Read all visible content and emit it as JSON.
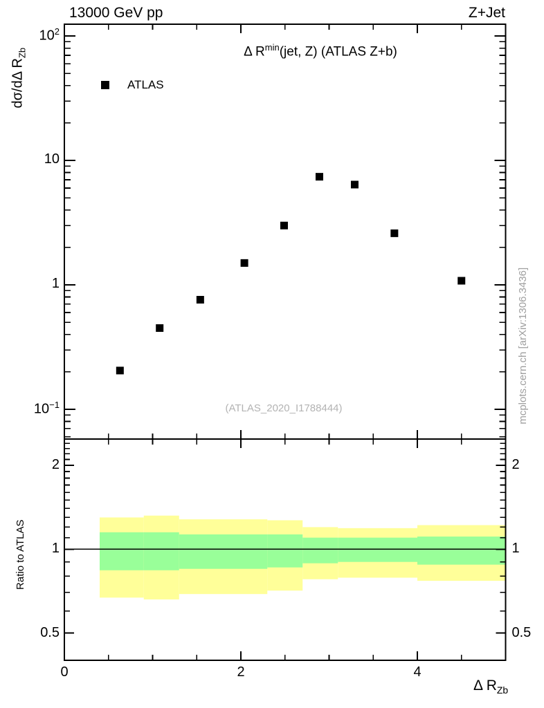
{
  "header": {
    "left": "13000 GeV pp",
    "right": "Z+Jet"
  },
  "main_panel": {
    "title": {
      "pre": "Δ R",
      "sup": "min",
      "post": "(jet, Z) (ATLAS Z+b)"
    },
    "ylabel": {
      "pre": "dσ/dΔ R",
      "sub": "Zb"
    },
    "legend": [
      {
        "marker": "filled-square",
        "label": "ATLAS"
      }
    ],
    "watermark": "(ATLAS_2020_I1788444)"
  },
  "ratio_panel": {
    "ylabel": "Ratio to ATLAS"
  },
  "xlabel": {
    "pre": "Δ R",
    "sub": "Zb"
  },
  "side_text": "mcplots.cern.ch [arXiv:1306.3436]",
  "colors": {
    "marker": "#000000",
    "band_outer_yellow": "#ffff99",
    "band_inner_green": "#99ff99",
    "frame": "#000000",
    "gray_text": "#9e9e9e"
  },
  "chart_data": [
    {
      "type": "scatter",
      "panel": "main",
      "title": "ΔR^min(jet, Z) (ATLAS Z+b)",
      "series": [
        {
          "name": "ATLAS",
          "marker": "filled-square",
          "x": [
            0.63,
            1.08,
            1.54,
            2.04,
            2.49,
            2.89,
            3.29,
            3.74,
            4.5
          ],
          "y": [
            0.205,
            0.45,
            0.76,
            1.5,
            3.0,
            7.4,
            6.4,
            2.6,
            1.08
          ]
        }
      ],
      "xlim": [
        0,
        5
      ],
      "ylim_log": [
        0.0577,
        124.5
      ],
      "yscale": "log",
      "xticks_major": [
        0,
        2,
        4
      ],
      "xtick_labels": [
        "0",
        "2",
        "4"
      ],
      "xticks_minor_step": 0.5,
      "yticks_major": [
        {
          "v": 100,
          "base": "10",
          "exp": "2"
        },
        {
          "v": 10,
          "base": "10",
          "exp": ""
        },
        {
          "v": 1,
          "base": "1",
          "exp": ""
        },
        {
          "v": 0.1,
          "base": "10",
          "exp": "−1"
        }
      ],
      "grid": false,
      "legend_position": "top-left-inside"
    },
    {
      "type": "band",
      "panel": "ratio",
      "ylabel": "Ratio to ATLAS",
      "xlim": [
        0,
        5
      ],
      "ylim_log": [
        0.399,
        2.486
      ],
      "yscale": "log",
      "reference_line": 1.0,
      "yticks_major": [
        {
          "v": 2,
          "label": "2"
        },
        {
          "v": 1,
          "label": "1"
        },
        {
          "v": 0.5,
          "label": "0.5"
        }
      ],
      "yticks_minor": [
        0.6,
        0.7,
        0.8,
        0.9,
        1.1,
        1.2,
        1.3,
        1.4,
        1.5,
        1.6,
        1.7,
        1.8,
        1.9,
        2.1,
        2.2,
        2.3,
        2.4
      ],
      "segments": [
        {
          "x0": 0.4,
          "x1": 0.9,
          "outer": [
            0.67,
            1.3
          ],
          "inner": [
            0.84,
            1.15
          ]
        },
        {
          "x0": 0.9,
          "x1": 1.3,
          "outer": [
            0.66,
            1.32
          ],
          "inner": [
            0.84,
            1.15
          ]
        },
        {
          "x0": 1.3,
          "x1": 2.3,
          "outer": [
            0.69,
            1.28
          ],
          "inner": [
            0.85,
            1.13
          ]
        },
        {
          "x0": 2.3,
          "x1": 2.7,
          "outer": [
            0.71,
            1.27
          ],
          "inner": [
            0.86,
            1.13
          ]
        },
        {
          "x0": 2.7,
          "x1": 3.1,
          "outer": [
            0.78,
            1.2
          ],
          "inner": [
            0.89,
            1.1
          ]
        },
        {
          "x0": 3.1,
          "x1": 4.0,
          "outer": [
            0.79,
            1.19
          ],
          "inner": [
            0.9,
            1.1
          ]
        },
        {
          "x0": 4.0,
          "x1": 5.0,
          "outer": [
            0.77,
            1.22
          ],
          "inner": [
            0.88,
            1.11
          ]
        }
      ]
    }
  ]
}
